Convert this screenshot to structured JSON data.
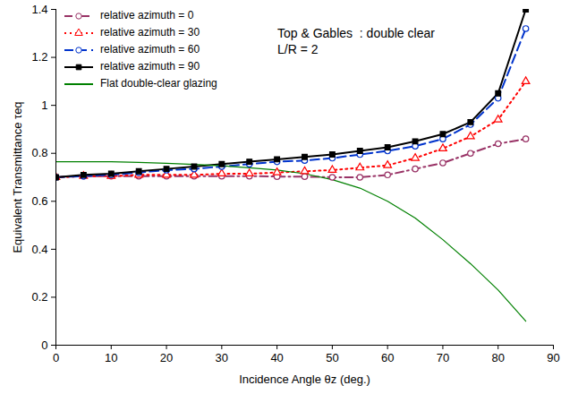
{
  "chart_data": {
    "type": "line",
    "x_label": "Incidence Angle θz (deg.)",
    "y_label": "Equivalent Transmittance τeq",
    "annotations": [
      "Top & Gables  : double clear",
      "L/R = 2"
    ],
    "x": [
      0,
      5,
      10,
      15,
      20,
      25,
      30,
      35,
      40,
      45,
      50,
      55,
      60,
      65,
      70,
      75,
      80,
      85
    ],
    "series": [
      {
        "name": "relative azimuth = 0",
        "color": "#993366",
        "marker": "circle-open",
        "line_style": "dashdot",
        "values": [
          0.7,
          0.705,
          0.705,
          0.705,
          0.705,
          0.705,
          0.705,
          0.705,
          0.703,
          0.703,
          0.7,
          0.7,
          0.71,
          0.735,
          0.76,
          0.8,
          0.84,
          0.86
        ]
      },
      {
        "name": "relative azimuth = 30",
        "color": "#ff0000",
        "marker": "triangle-open",
        "line_style": "dotted",
        "values": [
          0.7,
          0.705,
          0.705,
          0.71,
          0.71,
          0.71,
          0.715,
          0.715,
          0.72,
          0.725,
          0.73,
          0.74,
          0.75,
          0.78,
          0.82,
          0.87,
          0.94,
          1.1
        ]
      },
      {
        "name": "relative azimuth = 60",
        "color": "#0033cc",
        "marker": "circle-open",
        "line_style": "dashed",
        "values": [
          0.7,
          0.705,
          0.71,
          0.72,
          0.73,
          0.735,
          0.745,
          0.755,
          0.765,
          0.77,
          0.78,
          0.795,
          0.81,
          0.83,
          0.86,
          0.92,
          1.03,
          1.32
        ]
      },
      {
        "name": "relative azimuth = 90",
        "color": "#000000",
        "marker": "square",
        "line_style": "solid",
        "values": [
          0.7,
          0.71,
          0.715,
          0.725,
          0.735,
          0.745,
          0.755,
          0.765,
          0.775,
          0.785,
          0.795,
          0.81,
          0.825,
          0.85,
          0.88,
          0.93,
          1.05,
          1.4
        ]
      },
      {
        "name": "Flat double-clear glazing",
        "color": "#008000",
        "marker": "none",
        "line_style": "solid",
        "values": [
          0.765,
          0.765,
          0.765,
          0.762,
          0.758,
          0.754,
          0.748,
          0.74,
          0.73,
          0.715,
          0.69,
          0.655,
          0.6,
          0.53,
          0.44,
          0.34,
          0.23,
          0.1
        ]
      }
    ],
    "xlim": [
      0,
      90
    ],
    "xticks": [
      0,
      10,
      20,
      30,
      40,
      50,
      60,
      70,
      80,
      90
    ],
    "ylim": [
      0,
      1.4
    ],
    "yticks": [
      0,
      0.2,
      0.4,
      0.6,
      0.8,
      1,
      1.2,
      1.4
    ],
    "grid": false,
    "legend": "top-left"
  }
}
